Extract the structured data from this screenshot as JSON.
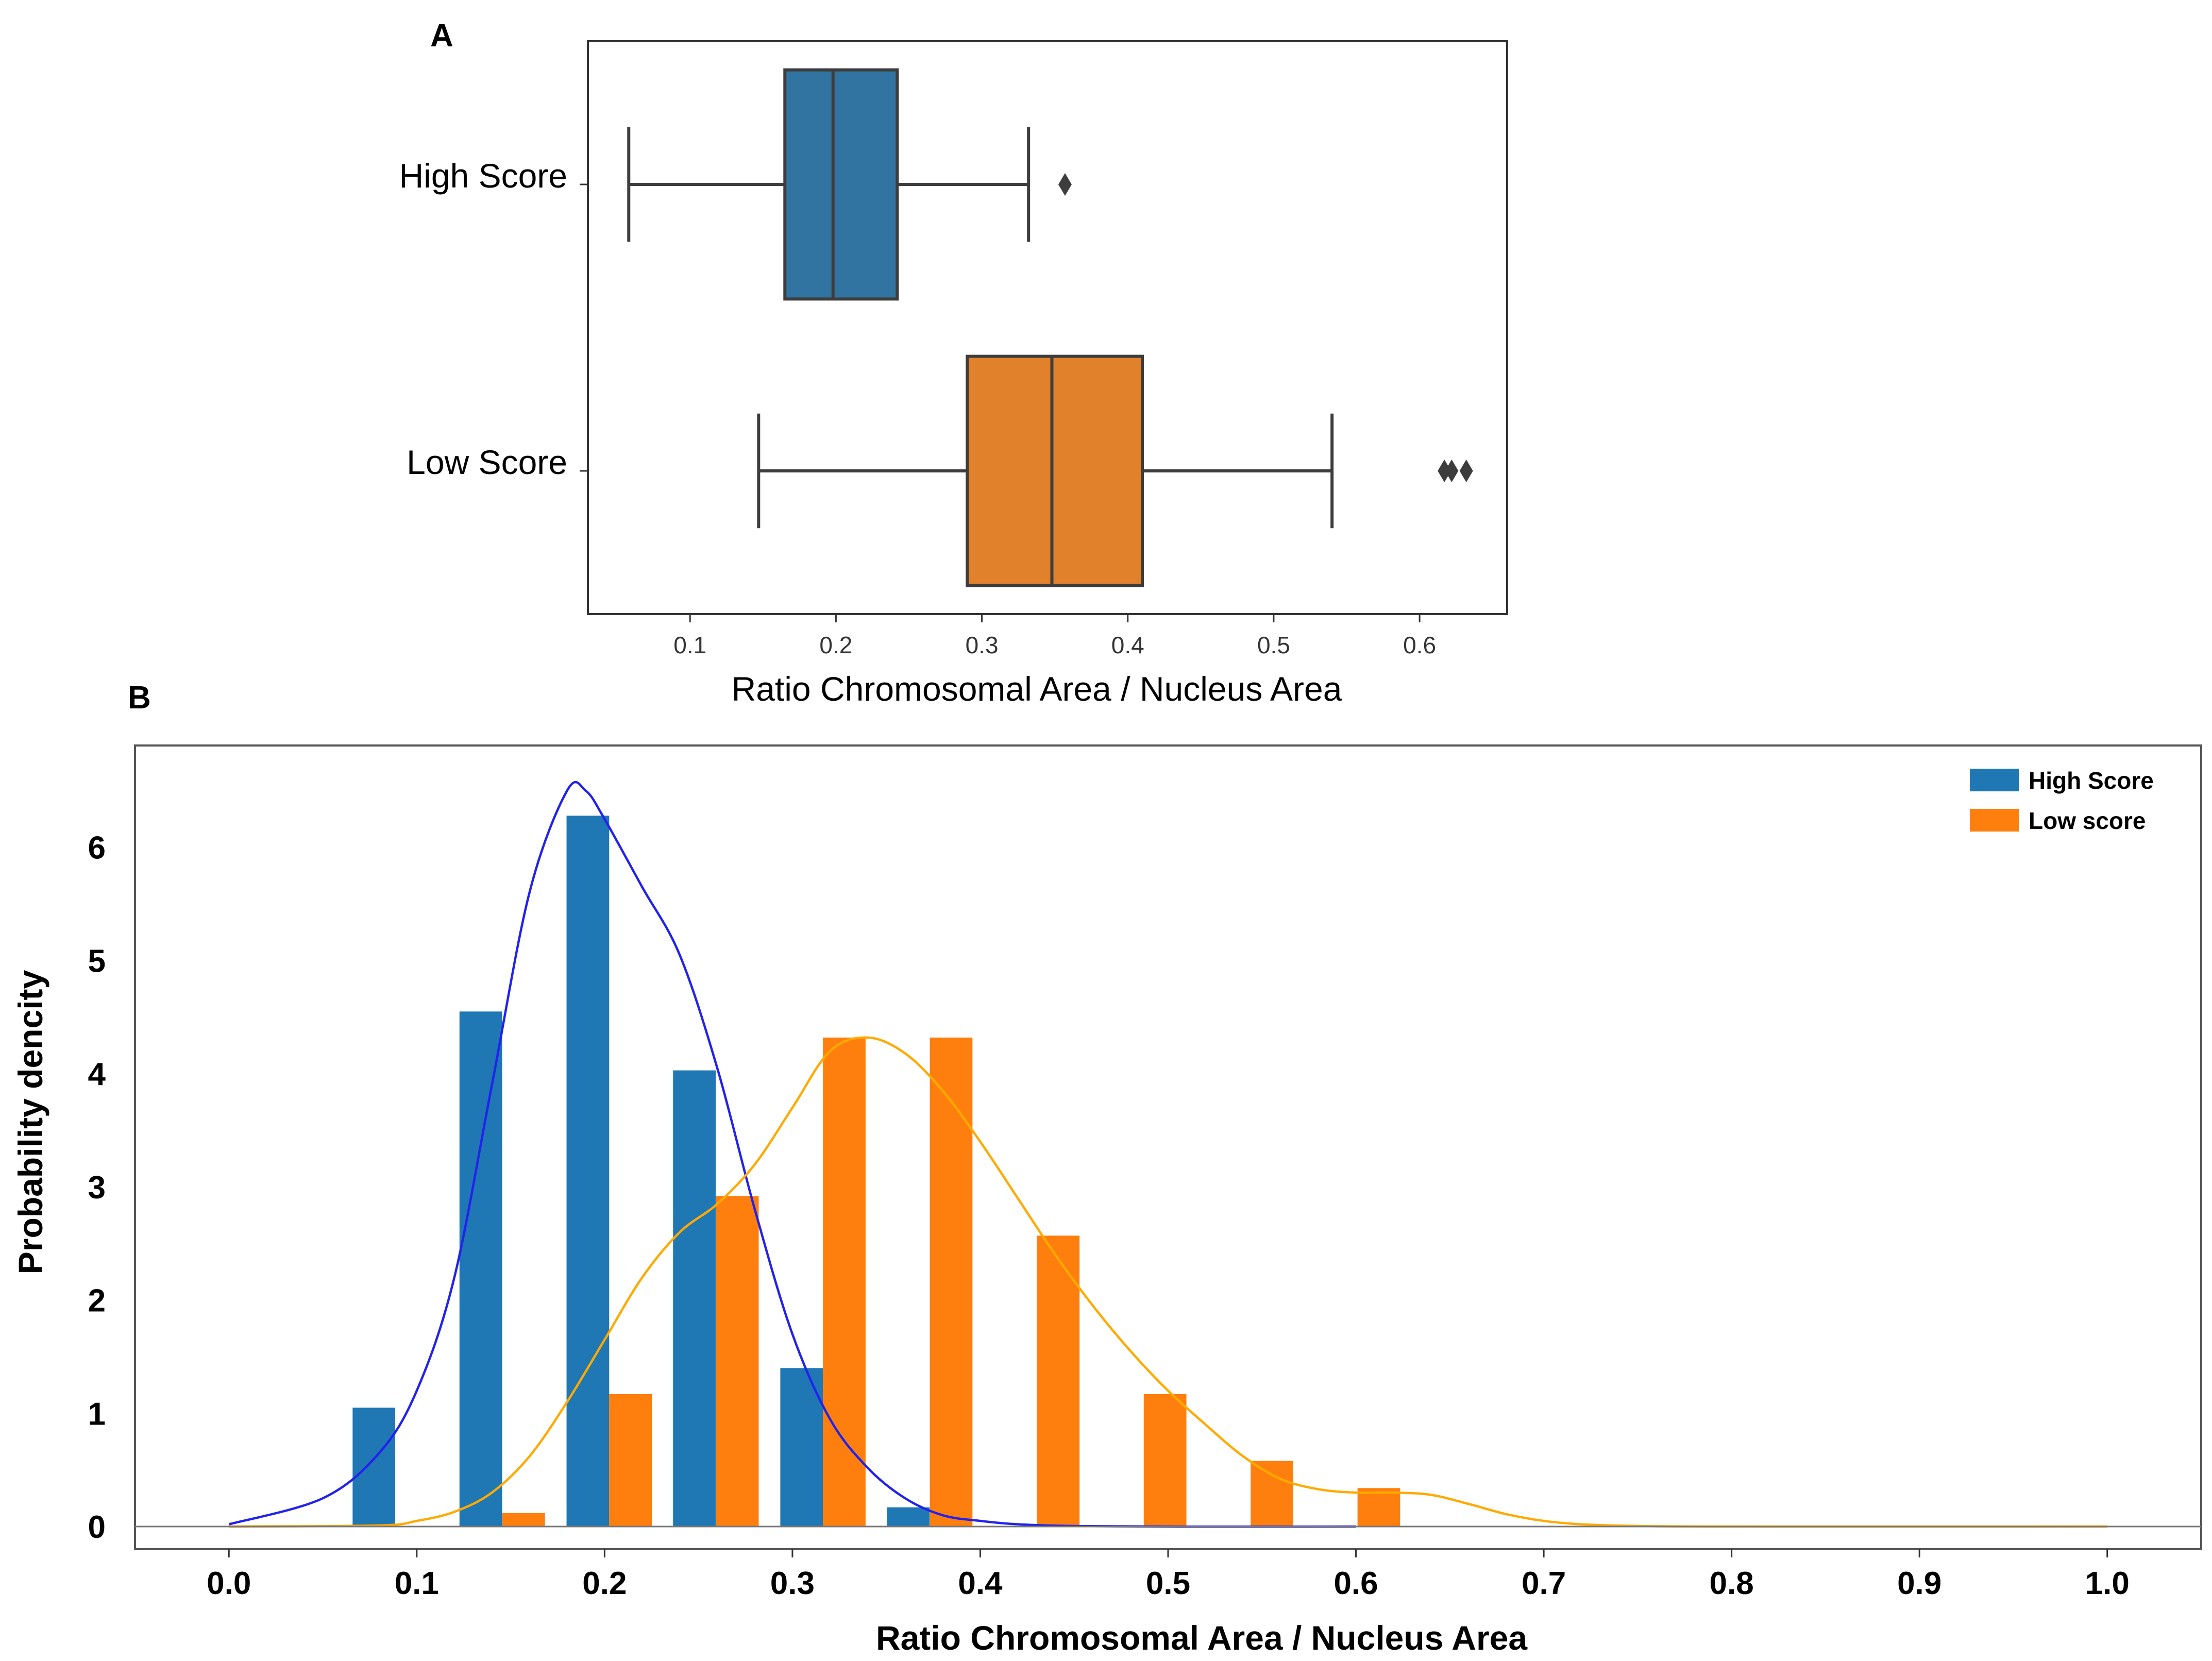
{
  "chart_data": [
    {
      "panel": "A",
      "type": "box",
      "orientation": "horizontal",
      "xlabel": "Ratio Chromosomal Area / Nucleus Area",
      "xlim": [
        0.03,
        0.66
      ],
      "xticks": [
        "0.1",
        "0.2",
        "0.3",
        "0.4",
        "0.5",
        "0.6"
      ],
      "tick_values": [
        0.1,
        0.2,
        0.3,
        0.4,
        0.5,
        0.6
      ],
      "groups": [
        {
          "name": "High Score",
          "color": "#3274a1",
          "whisker_low": 0.058,
          "q1": 0.165,
          "median": 0.198,
          "q3": 0.242,
          "whisker_high": 0.332,
          "outliers": [
            0.357
          ]
        },
        {
          "name": "Low Score",
          "color": "#e1812c",
          "whisker_low": 0.147,
          "q1": 0.29,
          "median": 0.348,
          "q3": 0.41,
          "whisker_high": 0.54,
          "outliers": [
            0.617,
            0.622,
            0.632
          ]
        }
      ]
    },
    {
      "panel": "B",
      "type": "bar",
      "xlabel": "Ratio Chromosomal Area / Nucleus Area",
      "ylabel": "Probability dencity",
      "xlim": [
        -0.05,
        1.05
      ],
      "ylim": [
        -0.2,
        6.9
      ],
      "xticks": [
        "0.0",
        "0.1",
        "0.2",
        "0.3",
        "0.4",
        "0.5",
        "0.6",
        "0.7",
        "0.8",
        "0.9",
        "1.0"
      ],
      "x_tick_values": [
        0,
        0.1,
        0.2,
        0.3,
        0.4,
        0.5,
        0.6,
        0.7,
        0.8,
        0.9,
        1.0
      ],
      "yticks": [
        "0",
        "1",
        "2",
        "3",
        "4",
        "5",
        "6"
      ],
      "y_tick_values": [
        0,
        1,
        2,
        3,
        4,
        5,
        6
      ],
      "bar_width": 0.0227,
      "series": [
        {
          "name": "High Score",
          "color": "#1f77b4",
          "x": [
            0.0772,
            0.1341,
            0.1911,
            0.2478,
            0.3049,
            0.3617
          ],
          "values": [
            1.05,
            4.55,
            6.28,
            4.03,
            1.4,
            0.17
          ]
        },
        {
          "name": "Low score",
          "color": "#ff7f0e",
          "x": [
            0.1569,
            0.2138,
            0.2707,
            0.3276,
            0.3845,
            0.4415,
            0.4984,
            0.5553,
            0.6122
          ],
          "values": [
            0.12,
            1.17,
            2.92,
            4.32,
            4.32,
            2.57,
            1.17,
            0.58,
            0.34
          ]
        }
      ],
      "density_curves": [
        {
          "name": "High Score KDE",
          "color": "#2222ee",
          "x": [
            0.0,
            0.05,
            0.08,
            0.1,
            0.12,
            0.14,
            0.16,
            0.18,
            0.19,
            0.2,
            0.22,
            0.24,
            0.26,
            0.28,
            0.3,
            0.32,
            0.34,
            0.36,
            0.38,
            0.4,
            0.42,
            0.45,
            0.5,
            0.6
          ],
          "y": [
            0.02,
            0.25,
            0.65,
            1.2,
            2.2,
            3.9,
            5.6,
            6.5,
            6.5,
            6.25,
            5.65,
            5.05,
            4.05,
            2.8,
            1.7,
            0.95,
            0.52,
            0.25,
            0.1,
            0.05,
            0.02,
            0.005,
            0.0,
            0.0
          ]
        },
        {
          "name": "Low score KDE",
          "color": "#ffaa00",
          "x": [
            0.0,
            0.08,
            0.1,
            0.12,
            0.14,
            0.16,
            0.18,
            0.2,
            0.22,
            0.24,
            0.26,
            0.28,
            0.3,
            0.32,
            0.34,
            0.36,
            0.38,
            0.4,
            0.42,
            0.44,
            0.46,
            0.48,
            0.5,
            0.52,
            0.54,
            0.56,
            0.58,
            0.6,
            0.62,
            0.64,
            0.66,
            0.68,
            0.7,
            0.72,
            0.75,
            0.8,
            1.0
          ],
          "y": [
            0.0,
            0.01,
            0.05,
            0.13,
            0.3,
            0.62,
            1.1,
            1.65,
            2.2,
            2.6,
            2.85,
            3.2,
            3.7,
            4.2,
            4.32,
            4.18,
            3.85,
            3.4,
            2.9,
            2.4,
            1.95,
            1.55,
            1.2,
            0.9,
            0.62,
            0.42,
            0.33,
            0.3,
            0.3,
            0.28,
            0.2,
            0.11,
            0.05,
            0.02,
            0.005,
            0.0,
            0.0
          ]
        }
      ],
      "legend": {
        "position": "top-right",
        "entries": [
          {
            "label": "High Score",
            "color": "#1f77b4"
          },
          {
            "label": "Low score",
            "color": "#ff7f0e"
          }
        ]
      }
    }
  ],
  "panels": {
    "a_label": "A",
    "b_label": "B"
  }
}
